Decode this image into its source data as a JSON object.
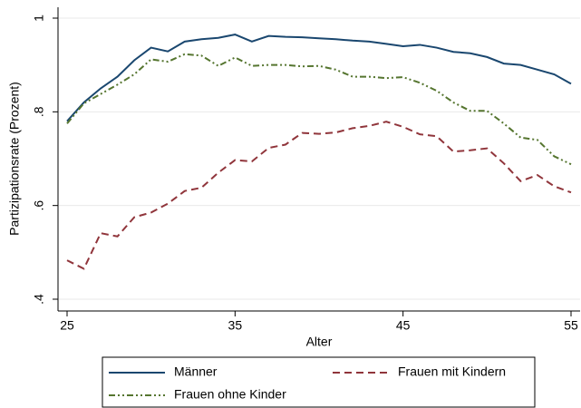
{
  "chart_data": {
    "type": "line",
    "x_label": "Alter",
    "y_label": "Partizipationsrate (Prozent)",
    "x": [
      25,
      26,
      27,
      28,
      29,
      30,
      31,
      32,
      33,
      34,
      35,
      36,
      37,
      38,
      39,
      40,
      41,
      42,
      43,
      44,
      45,
      46,
      47,
      48,
      49,
      50,
      51,
      52,
      53,
      54,
      55
    ],
    "series": [
      {
        "name": "Männer",
        "color": "#1a476f",
        "dash": "solid",
        "values": [
          0.78,
          0.82,
          0.85,
          0.875,
          0.91,
          0.937,
          0.929,
          0.95,
          0.955,
          0.958,
          0.965,
          0.95,
          0.962,
          0.96,
          0.959,
          0.957,
          0.955,
          0.952,
          0.95,
          0.945,
          0.94,
          0.943,
          0.937,
          0.928,
          0.925,
          0.917,
          0.903,
          0.9,
          0.89,
          0.88,
          0.86
        ]
      },
      {
        "name": "Frauen mit Kindern",
        "color": "#90353b",
        "dash": "dash",
        "values": [
          0.483,
          0.465,
          0.541,
          0.534,
          0.575,
          0.585,
          0.604,
          0.631,
          0.638,
          0.67,
          0.697,
          0.694,
          0.723,
          0.73,
          0.755,
          0.753,
          0.756,
          0.765,
          0.77,
          0.779,
          0.768,
          0.752,
          0.748,
          0.715,
          0.718,
          0.722,
          0.69,
          0.652,
          0.665,
          0.641,
          0.628
        ]
      },
      {
        "name": "Frauen ohne Kinder",
        "color": "#55752f",
        "dash": "dash-dot-dot",
        "values": [
          0.775,
          0.818,
          0.838,
          0.858,
          0.88,
          0.912,
          0.907,
          0.923,
          0.92,
          0.898,
          0.916,
          0.898,
          0.9,
          0.9,
          0.897,
          0.898,
          0.89,
          0.875,
          0.875,
          0.872,
          0.874,
          0.862,
          0.845,
          0.82,
          0.802,
          0.802,
          0.775,
          0.745,
          0.74,
          0.705,
          0.688
        ]
      }
    ],
    "xlim": [
      25,
      55
    ],
    "xticks": [
      25,
      35,
      45,
      55
    ],
    "ylim": [
      0.4,
      1
    ],
    "yticks": [
      {
        "value": 0.4,
        "label": ".4"
      },
      {
        "value": 0.6,
        "label": ".6"
      },
      {
        "value": 0.8,
        "label": ".8"
      },
      1
    ],
    "grid": true,
    "legend": "bottom"
  }
}
